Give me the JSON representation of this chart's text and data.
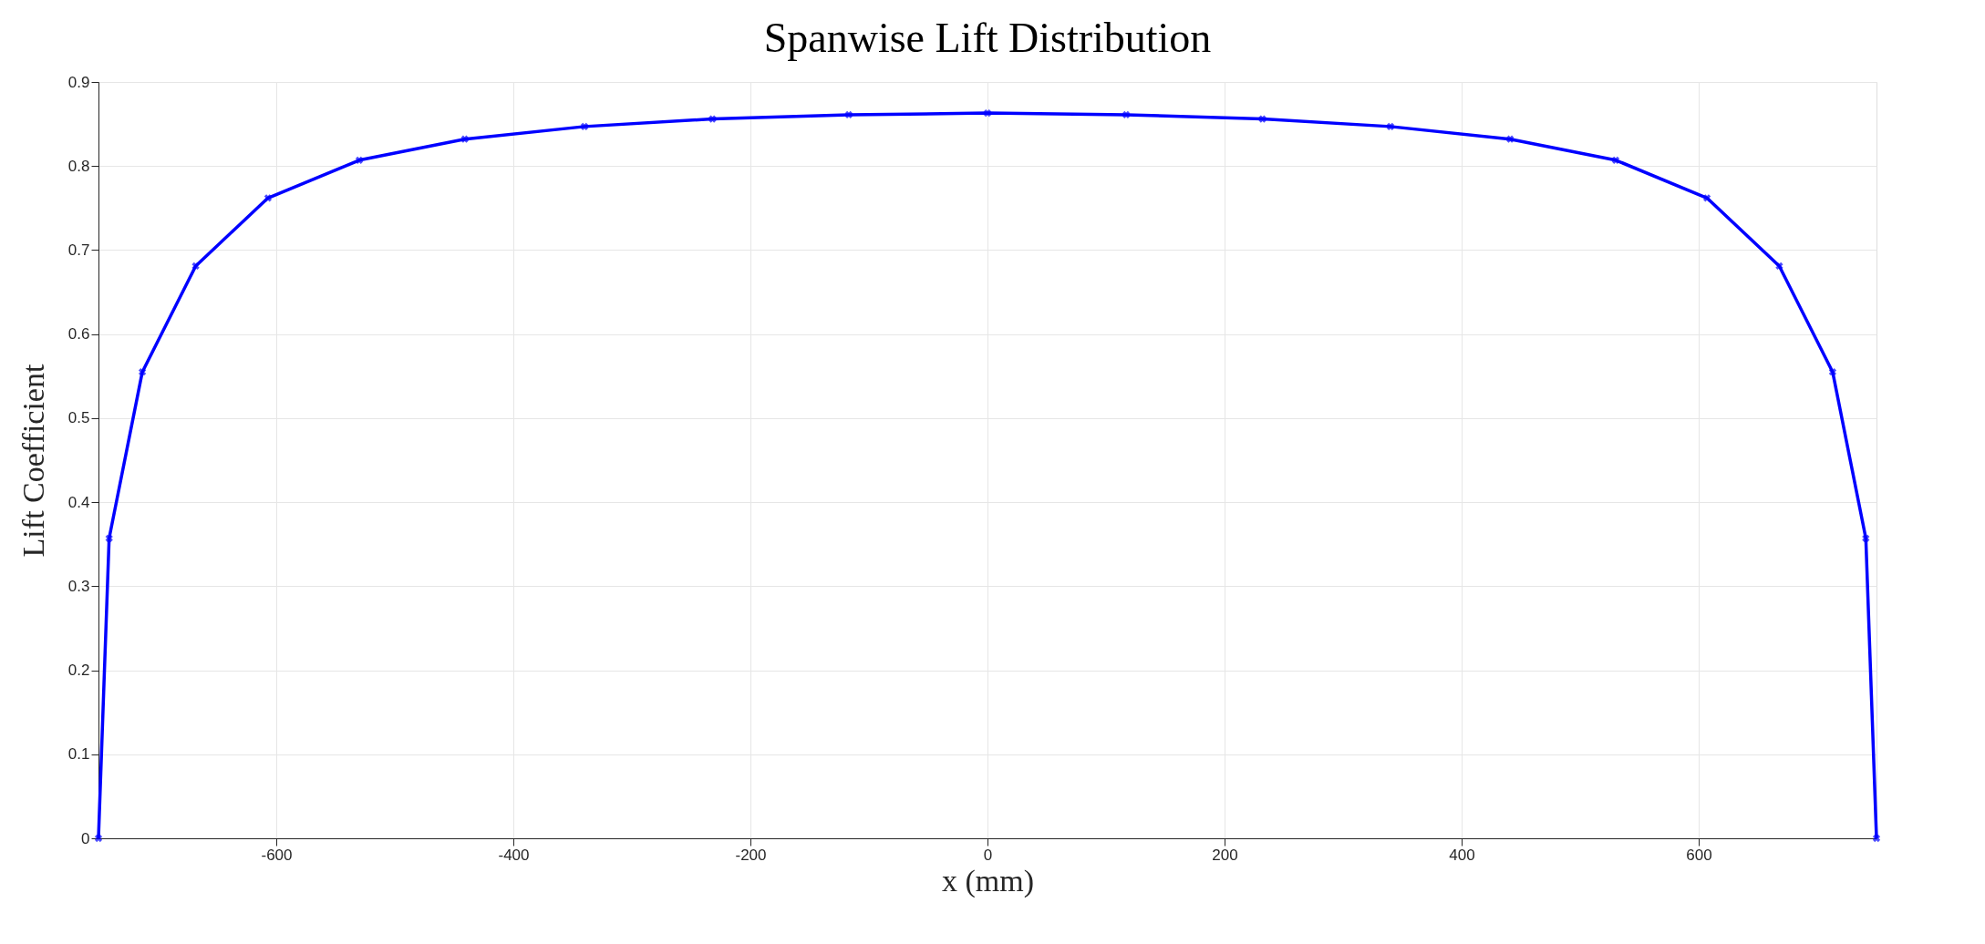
{
  "chart_data": {
    "type": "line",
    "title": "Spanwise Lift Distribution",
    "xlabel": "x (mm)",
    "ylabel": "Lift Coefficient",
    "x": [
      -750,
      -741,
      -713,
      -668,
      -607,
      -530,
      -441,
      -340,
      -232,
      -117,
      0,
      117,
      232,
      340,
      441,
      530,
      607,
      668,
      713,
      741,
      750
    ],
    "series": [
      {
        "color": "#0000ff",
        "values": [
          0,
          0.357,
          0.555,
          0.681,
          0.762,
          0.807,
          0.832,
          0.847,
          0.856,
          0.861,
          0.863,
          0.861,
          0.856,
          0.847,
          0.832,
          0.807,
          0.762,
          0.681,
          0.555,
          0.357,
          0
        ]
      }
    ],
    "xlim": [
      -750,
      750
    ],
    "xticks": [
      -600,
      -400,
      -200,
      0,
      200,
      400,
      600
    ],
    "ylim": [
      0,
      0.9
    ],
    "yticks": [
      0,
      0.1,
      0.2,
      0.3,
      0.4,
      0.5,
      0.6,
      0.7,
      0.8,
      0.9
    ],
    "grid": true,
    "marker": "cross",
    "line_style": "solid",
    "legend": false
  }
}
